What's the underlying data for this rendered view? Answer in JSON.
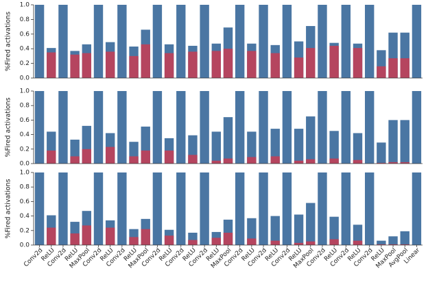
{
  "chart_data": [
    {
      "type": "bar",
      "ylabel": "%Fired activations",
      "ylim": [
        0,
        1.0
      ],
      "yticks": [
        {
          "value": 0,
          "label": "0.0"
        },
        0.2,
        0.4,
        0.6,
        0.8,
        {
          "value": 1,
          "label": "1.0"
        }
      ],
      "series": [
        {
          "color": "#4a76a3",
          "values": [
            1,
            0.41,
            1,
            0.37,
            0.46,
            1,
            0.49,
            1,
            0.43,
            0.66,
            1,
            0.46,
            1,
            0.44,
            1,
            0.47,
            0.69,
            1,
            0.47,
            1,
            0.45,
            1,
            0.5,
            0.71,
            1,
            0.48,
            1,
            0.47,
            1,
            0.38,
            0.62,
            0.62,
            1
          ]
        },
        {
          "color": "#b5455f",
          "values": [
            0,
            0.35,
            0,
            0.32,
            0.34,
            0,
            0.36,
            0,
            0.3,
            0.46,
            0,
            0.34,
            0,
            0.36,
            0,
            0.37,
            0.4,
            0,
            0.37,
            0,
            0.34,
            0,
            0.28,
            0.41,
            0,
            0.44,
            0,
            0.41,
            0,
            0.16,
            0.27,
            0.27,
            0
          ]
        }
      ]
    },
    {
      "type": "bar",
      "ylabel": "%Fired activations",
      "ylim": [
        0,
        1.0
      ],
      "yticks": [
        {
          "value": 0,
          "label": "0.0"
        },
        0.2,
        0.4,
        0.6,
        0.8,
        {
          "value": 1,
          "label": "1.0"
        }
      ],
      "series": [
        {
          "color": "#4a76a3",
          "values": [
            1,
            0.44,
            1,
            0.33,
            0.52,
            1,
            0.42,
            1,
            0.3,
            0.51,
            1,
            0.35,
            1,
            0.39,
            1,
            0.44,
            0.64,
            1,
            0.44,
            1,
            0.48,
            1,
            0.48,
            0.65,
            1,
            0.45,
            1,
            0.42,
            1,
            0.29,
            0.6,
            0.6,
            1
          ]
        },
        {
          "color": "#b5455f",
          "values": [
            0,
            0.18,
            0,
            0.1,
            0.2,
            0,
            0.23,
            0,
            0.1,
            0.18,
            0,
            0.18,
            0,
            0.12,
            0,
            0.04,
            0.07,
            0,
            0.09,
            0,
            0.1,
            0,
            0.04,
            0.06,
            0,
            0.07,
            0,
            0.05,
            0,
            0.01,
            0.02,
            0.02,
            0
          ]
        }
      ]
    },
    {
      "type": "bar",
      "ylabel": "%Fired activations",
      "ylim": [
        0,
        1.0
      ],
      "yticks": [
        {
          "value": 0,
          "label": "0.0"
        },
        0.2,
        0.4,
        0.6,
        0.8,
        {
          "value": 1,
          "label": "1.0"
        }
      ],
      "categories": [
        "Conv2d",
        "ReLU",
        "Conv2d",
        "ReLU",
        "MaxPool",
        "Conv2d",
        "ReLU",
        "Conv2d",
        "ReLU",
        "MaxPool",
        "Conv2d",
        "ReLU",
        "Conv2d",
        "ReLU",
        "Conv2d",
        "ReLU",
        "MaxPool",
        "Conv2d",
        "ReLU",
        "Conv2d",
        "ReLU",
        "Conv2d",
        "ReLU",
        "MaxPool",
        "Conv2d",
        "ReLU",
        "Conv2d",
        "ReLU",
        "Conv2d",
        "ReLU",
        "MaxPool",
        "AvgPool",
        "Linear"
      ],
      "series": [
        {
          "color": "#4a76a3",
          "values": [
            1,
            0.41,
            1,
            0.32,
            0.47,
            1,
            0.34,
            1,
            0.22,
            0.36,
            1,
            0.21,
            1,
            0.17,
            1,
            0.18,
            0.35,
            1,
            0.37,
            1,
            0.4,
            1,
            0.42,
            0.58,
            1,
            0.39,
            1,
            0.28,
            1,
            0.06,
            0.12,
            0.19,
            1
          ]
        },
        {
          "color": "#b5455f",
          "values": [
            0,
            0.24,
            0,
            0.16,
            0.27,
            0,
            0.24,
            0,
            0.11,
            0.22,
            0,
            0.13,
            0,
            0.07,
            0,
            0.1,
            0.17,
            0,
            0.09,
            0,
            0.06,
            0,
            0.03,
            0.05,
            0,
            0.08,
            0,
            0.06,
            0,
            0.01,
            0.01,
            0.01,
            0
          ]
        }
      ]
    }
  ]
}
